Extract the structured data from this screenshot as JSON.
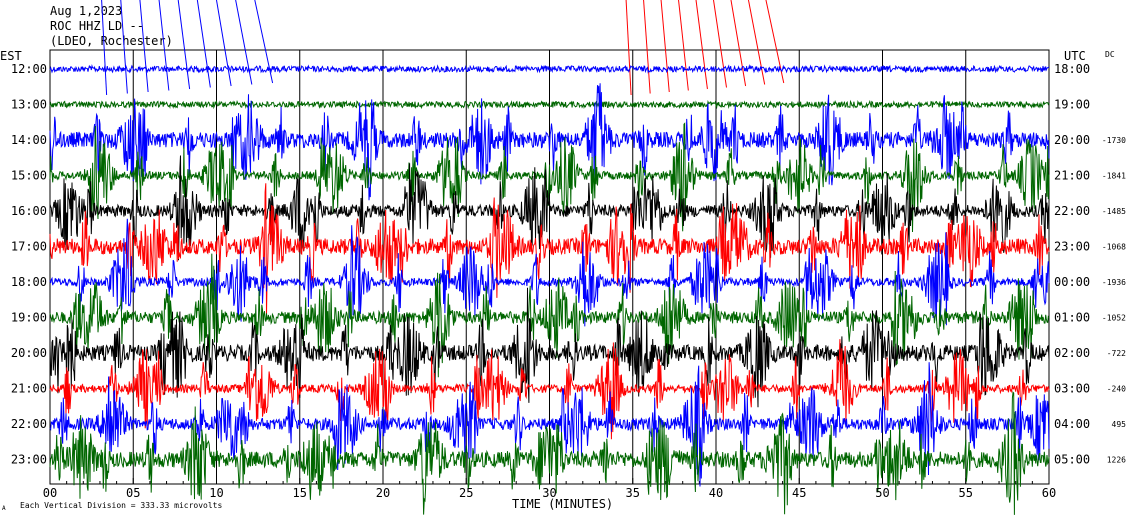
{
  "header": {
    "date": "Aug 1,2023",
    "station": "ROC HHZ LD --",
    "network": "(LDEO, Rochester)"
  },
  "axes": {
    "left_unit": "EST",
    "right_unit": "UTC",
    "dc_label": "DC",
    "xlabel": "TIME (MINUTES)",
    "footer": "Each Vertical Division = 333.33 microvolts",
    "footer_mark": "A"
  },
  "chart_data": {
    "type": "line",
    "xlim": [
      0,
      60
    ],
    "x_ticks": [
      "00",
      "05",
      "10",
      "15",
      "20",
      "25",
      "30",
      "35",
      "40",
      "45",
      "50",
      "55",
      "60"
    ],
    "trace_colors": [
      "#0000ff",
      "#006600",
      "#000000",
      "#ff0000"
    ],
    "rows": [
      {
        "est": "12:00",
        "utc": "18:00",
        "dc": "",
        "color": "#0000ff"
      },
      {
        "est": "13:00",
        "utc": "19:00",
        "dc": "",
        "color": "#006600"
      },
      {
        "est": "14:00",
        "utc": "20:00",
        "dc": "-1730",
        "color": "#0000ff"
      },
      {
        "est": "15:00",
        "utc": "21:00",
        "dc": "-1841",
        "color": "#006600"
      },
      {
        "est": "16:00",
        "utc": "22:00",
        "dc": "-1485",
        "color": "#000000"
      },
      {
        "est": "17:00",
        "utc": "23:00",
        "dc": "-1068",
        "color": "#ff0000"
      },
      {
        "est": "18:00",
        "utc": "00:00",
        "dc": "-1936",
        "color": "#0000ff"
      },
      {
        "est": "19:00",
        "utc": "01:00",
        "dc": "-1052",
        "color": "#006600"
      },
      {
        "est": "20:00",
        "utc": "02:00",
        "dc": "-722",
        "color": "#000000"
      },
      {
        "est": "21:00",
        "utc": "03:00",
        "dc": "-240",
        "color": "#ff0000"
      },
      {
        "est": "22:00",
        "utc": "04:00",
        "dc": "495",
        "color": "#0000ff"
      },
      {
        "est": "23:00",
        "utc": "05:00",
        "dc": "1226",
        "color": "#006600"
      }
    ],
    "event_markers": [
      {
        "color": "#0000ff",
        "minute_start": 3.1,
        "minute_end": 12.3
      },
      {
        "color": "#ff0000",
        "minute_start": 34.6,
        "minute_end": 43.0
      }
    ]
  }
}
